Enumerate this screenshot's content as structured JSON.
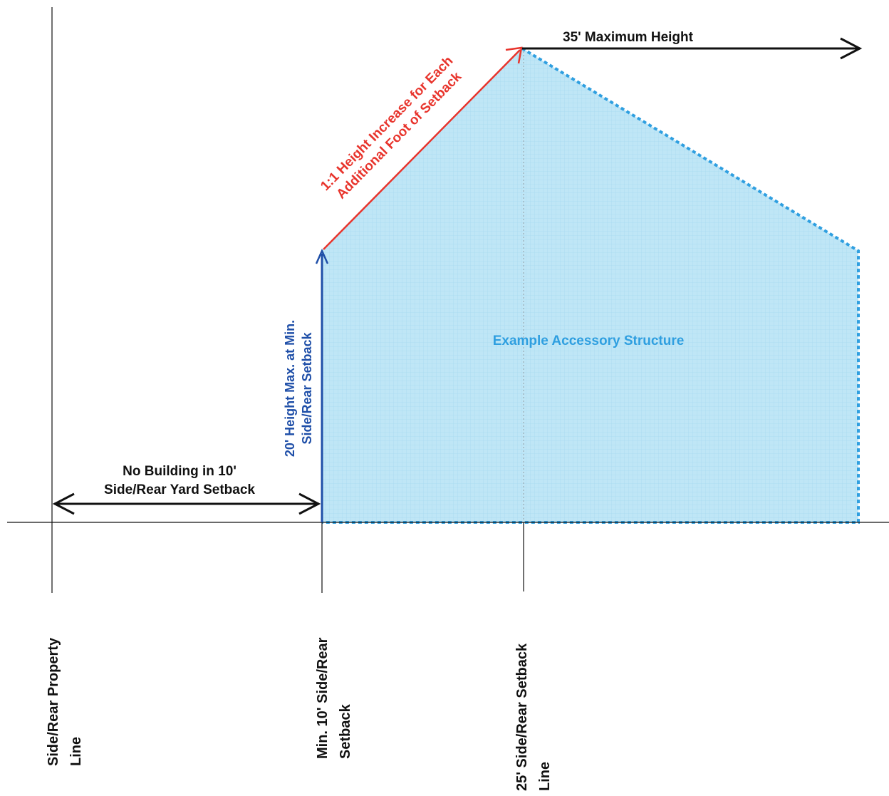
{
  "labels": {
    "max_height": "35' Maximum Height",
    "slope_line1": "1:1 Height Increase for Each",
    "slope_line2": "Additional Foot of Setback",
    "min_height_line1": "20' Height Max. at Min.",
    "min_height_line2": "Side/Rear Setback",
    "structure": "Example Accessory Structure",
    "no_building_line1": "No Building in 10'",
    "no_building_line2": "Side/Rear Yard Setback",
    "property_line_1": "Side/Rear Property",
    "property_line_2": "Line",
    "min_setback_1": "Min. 10' Side/Rear",
    "min_setback_2": "Setback",
    "setback_25_1": "25' Side/Rear Setback",
    "setback_25_2": "Line"
  },
  "colors": {
    "structure_fill": "#bfe6f6",
    "structure_outline": "#2f9fe0",
    "structure_text": "#2f9fe0",
    "slope_red": "#e8342c",
    "height_blue": "#1f4fa8",
    "line_black": "#111111"
  }
}
